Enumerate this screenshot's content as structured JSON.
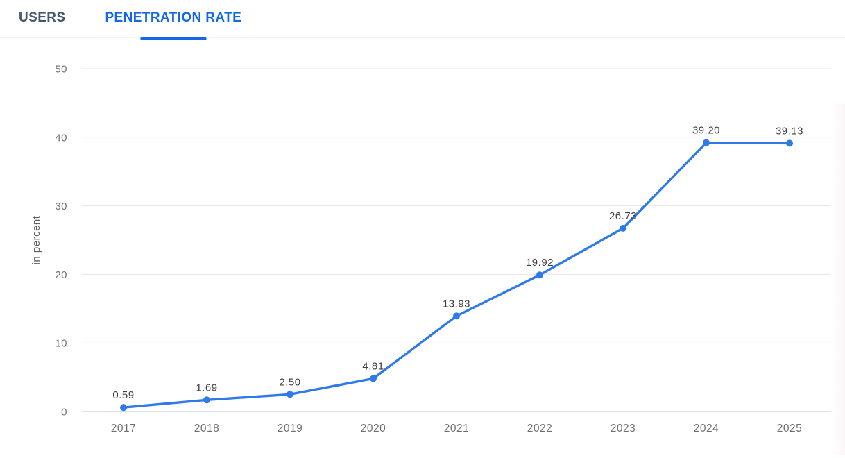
{
  "tabs": [
    {
      "label": "USERS",
      "active": false
    },
    {
      "label": "PENETRATION RATE",
      "active": true
    }
  ],
  "chart_data": {
    "type": "line",
    "categories": [
      "2017",
      "2018",
      "2019",
      "2020",
      "2021",
      "2022",
      "2023",
      "2024",
      "2025"
    ],
    "series": [
      {
        "name": "Penetration Rate",
        "values": [
          0.59,
          1.69,
          2.5,
          4.81,
          13.93,
          19.92,
          26.73,
          39.2,
          39.13
        ]
      }
    ],
    "data_labels": [
      "0.59",
      "1.69",
      "2.50",
      "4.81",
      "13.93",
      "19.92",
      "26.73",
      "39.20",
      "39.13"
    ],
    "title": "",
    "xlabel": "",
    "ylabel": "in percent",
    "ylim": [
      0,
      50
    ],
    "yticks": [
      0,
      10,
      20,
      30,
      40,
      50
    ],
    "grid": true,
    "legend_position": "none"
  },
  "colors": {
    "accent_blue": "#1268e6",
    "line_blue": "#2e7ae8",
    "grid_line": "#e7e7e7",
    "axis_line": "#ccd6eb",
    "tick_text": "#6f6f6f",
    "data_label_text": "#3f3f3f",
    "axis_title_text": "#5f5f5f",
    "inactive_tab_text": "#46566b"
  }
}
